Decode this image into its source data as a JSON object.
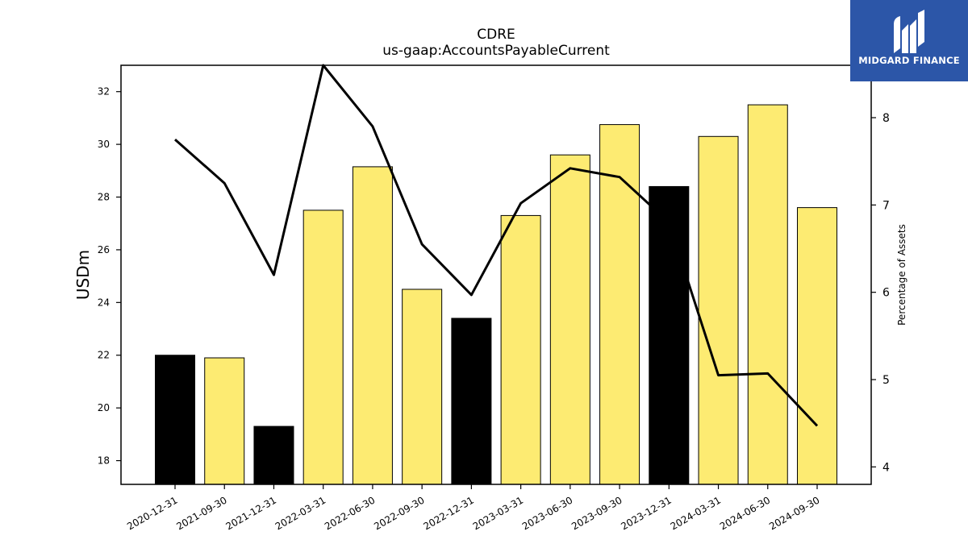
{
  "chart_data": {
    "type": "bar",
    "title": "CDRE",
    "subtitle": "us-gaap:AccountsPayableCurrent",
    "ylabel": "USDm",
    "y2label": "Percentage of Assets",
    "ylim": [
      17.1,
      33.0
    ],
    "y2lim": [
      3.8,
      8.6
    ],
    "yticks": [
      18,
      20,
      22,
      24,
      26,
      28,
      30,
      32
    ],
    "y2ticks": [
      4,
      5,
      6,
      7,
      8
    ],
    "categories": [
      "2020-12-31",
      "2021-09-30",
      "2021-12-31",
      "2022-03-31",
      "2022-06-30",
      "2022-09-30",
      "2022-12-31",
      "2023-03-31",
      "2023-06-30",
      "2023-09-30",
      "2023-12-31",
      "2024-03-31",
      "2024-06-30",
      "2024-09-30"
    ],
    "series": [
      {
        "type": "bar",
        "values": [
          22.0,
          21.9,
          19.3,
          27.5,
          29.15,
          24.5,
          23.4,
          27.3,
          29.6,
          30.75,
          28.4,
          30.3,
          31.5,
          27.6
        ],
        "colors": [
          "#000000",
          "#fdeb72",
          "#000000",
          "#fdeb72",
          "#fdeb72",
          "#fdeb72",
          "#000000",
          "#fdeb72",
          "#fdeb72",
          "#fdeb72",
          "#000000",
          "#fdeb72",
          "#fdeb72",
          "#fdeb72"
        ]
      },
      {
        "type": "line",
        "axis": "right",
        "color": "#000000",
        "values": [
          7.75,
          7.25,
          6.2,
          8.6,
          7.9,
          6.55,
          5.97,
          7.02,
          7.42,
          7.32,
          6.8,
          5.05,
          5.07,
          4.47
        ]
      }
    ],
    "grid": false,
    "legend": "none"
  },
  "logo": {
    "text": "MIDGARD FINANCE",
    "icon": "midgard-logo-icon"
  }
}
